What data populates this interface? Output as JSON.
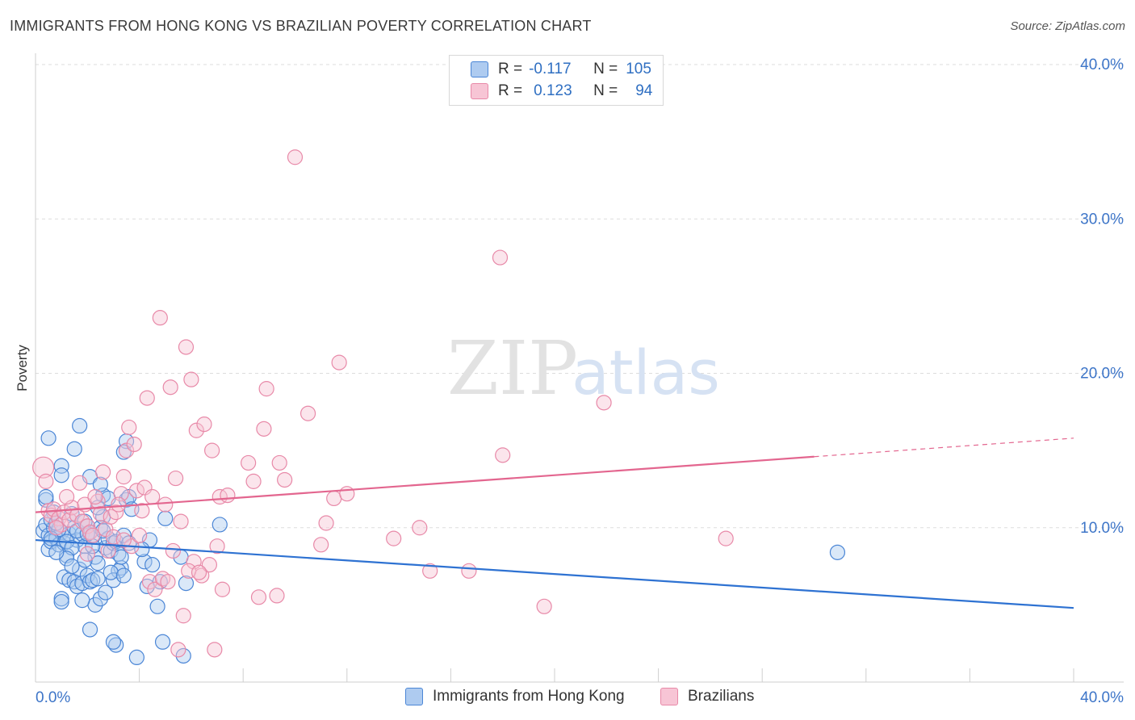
{
  "title": "IMMIGRANTS FROM HONG KONG VS BRAZILIAN POVERTY CORRELATION CHART",
  "source": "Source: ZipAtlas.com",
  "watermark": {
    "zip": "ZIP",
    "atlas": "atlas"
  },
  "colors": {
    "blue_fill": "#aecbf0",
    "blue_stroke": "#4b86d6",
    "blue_line": "#2e72d2",
    "pink_fill": "#f7c5d5",
    "pink_stroke": "#e889a8",
    "pink_line": "#e3668f",
    "tick_text": "#3d75c8",
    "grid": "#dddddd"
  },
  "legend": {
    "rows": [
      {
        "r_label": "R =",
        "r_value": "-0.117",
        "n_label": "N =",
        "n_value": "105"
      },
      {
        "r_label": "R =",
        "r_value": "0.123",
        "n_label": "N =",
        "n_value": "94"
      }
    ]
  },
  "chart_data": {
    "type": "scatter",
    "title": "IMMIGRANTS FROM HONG KONG VS BRAZILIAN POVERTY CORRELATION CHART",
    "xlabel": "",
    "ylabel": "Poverty",
    "xlim": [
      0,
      40
    ],
    "ylim": [
      0,
      40
    ],
    "x_tick_labels": [
      "0.0%",
      "40.0%"
    ],
    "y_ticks": [
      10,
      20,
      30,
      40
    ],
    "y_tick_labels": [
      "10.0%",
      "20.0%",
      "30.0%",
      "40.0%"
    ],
    "grid": "horizontal dashed",
    "legend_placement": "top-center",
    "series": [
      {
        "name": "Immigrants from Hong Kong",
        "r": -0.117,
        "n": 105,
        "trend": {
          "x": [
            0,
            40
          ],
          "y": [
            9.2,
            4.8
          ]
        },
        "points": [
          [
            0.3,
            9.8
          ],
          [
            0.4,
            10.2
          ],
          [
            0.5,
            9.5
          ],
          [
            0.5,
            8.6
          ],
          [
            0.6,
            9.1
          ],
          [
            0.7,
            10.0
          ],
          [
            0.8,
            9.3
          ],
          [
            0.9,
            8.9
          ],
          [
            1.0,
            9.7
          ],
          [
            1.1,
            9.0
          ],
          [
            1.2,
            8.2
          ],
          [
            1.3,
            9.6
          ],
          [
            0.4,
            11.8
          ],
          [
            0.6,
            10.5
          ],
          [
            0.5,
            15.8
          ],
          [
            1.5,
            15.1
          ],
          [
            1.7,
            16.6
          ],
          [
            1.0,
            14.0
          ],
          [
            1.0,
            13.4
          ],
          [
            1.4,
            10.9
          ],
          [
            1.5,
            10.0
          ],
          [
            1.6,
            9.2
          ],
          [
            1.8,
            9.6
          ],
          [
            1.9,
            8.8
          ],
          [
            2.0,
            10.1
          ],
          [
            2.1,
            9.7
          ],
          [
            2.2,
            9.4
          ],
          [
            2.3,
            8.1
          ],
          [
            2.4,
            7.7
          ],
          [
            2.5,
            10.0
          ],
          [
            2.6,
            12.1
          ],
          [
            2.7,
            8.7
          ],
          [
            2.8,
            9.3
          ],
          [
            2.9,
            8.5
          ],
          [
            3.0,
            9.0
          ],
          [
            3.1,
            9.1
          ],
          [
            3.3,
            7.4
          ],
          [
            3.4,
            9.5
          ],
          [
            3.5,
            11.8
          ],
          [
            3.6,
            12.0
          ],
          [
            3.7,
            11.2
          ],
          [
            3.5,
            15.6
          ],
          [
            3.4,
            14.9
          ],
          [
            2.1,
            13.3
          ],
          [
            2.5,
            12.8
          ],
          [
            2.6,
            10.7
          ],
          [
            2.8,
            11.9
          ],
          [
            3.2,
            7.2
          ],
          [
            1.1,
            6.8
          ],
          [
            1.3,
            6.6
          ],
          [
            1.5,
            6.5
          ],
          [
            1.6,
            6.2
          ],
          [
            1.7,
            7.3
          ],
          [
            1.8,
            6.4
          ],
          [
            1.9,
            7.9
          ],
          [
            2.0,
            6.9
          ],
          [
            2.1,
            6.5
          ],
          [
            2.2,
            6.6
          ],
          [
            2.3,
            5.0
          ],
          [
            2.5,
            5.4
          ],
          [
            2.7,
            5.8
          ],
          [
            3.0,
            6.6
          ],
          [
            1.0,
            5.4
          ],
          [
            1.0,
            5.2
          ],
          [
            1.8,
            5.3
          ],
          [
            2.1,
            3.4
          ],
          [
            3.1,
            2.4
          ],
          [
            3.9,
            1.6
          ],
          [
            4.9,
            2.6
          ],
          [
            5.7,
            1.7
          ],
          [
            3.0,
            2.6
          ],
          [
            4.2,
            7.8
          ],
          [
            4.5,
            7.6
          ],
          [
            4.4,
            9.2
          ],
          [
            5.6,
            8.1
          ],
          [
            5.8,
            6.4
          ],
          [
            4.8,
            6.5
          ],
          [
            4.7,
            4.9
          ],
          [
            5.0,
            10.6
          ],
          [
            7.1,
            10.2
          ],
          [
            3.2,
            8.3
          ],
          [
            3.6,
            9.0
          ],
          [
            30.9,
            8.4
          ],
          [
            0.4,
            12.0
          ],
          [
            0.7,
            11.0
          ],
          [
            0.9,
            9.9
          ],
          [
            1.2,
            9.1
          ],
          [
            1.4,
            8.7
          ],
          [
            0.8,
            10.3
          ],
          [
            2.4,
            11.3
          ],
          [
            2.6,
            9.8
          ],
          [
            3.3,
            8.1
          ],
          [
            1.6,
            9.8
          ],
          [
            1.9,
            10.4
          ],
          [
            2.2,
            8.8
          ],
          [
            2.4,
            6.7
          ],
          [
            2.9,
            7.1
          ],
          [
            3.4,
            6.9
          ],
          [
            4.1,
            8.6
          ],
          [
            4.3,
            6.2
          ],
          [
            1.2,
            8.0
          ],
          [
            1.4,
            7.5
          ],
          [
            0.6,
            9.3
          ],
          [
            0.8,
            8.4
          ],
          [
            2.0,
            9.6
          ]
        ]
      },
      {
        "name": "Brazilians",
        "r": 0.123,
        "n": 94,
        "trend": {
          "x": [
            0,
            40
          ],
          "y": [
            11.0,
            15.8
          ]
        },
        "points": [
          [
            0.3,
            13.9
          ],
          [
            0.4,
            13.0
          ],
          [
            0.5,
            11.1
          ],
          [
            0.6,
            10.8
          ],
          [
            0.7,
            11.2
          ],
          [
            0.9,
            10.6
          ],
          [
            1.0,
            10.2
          ],
          [
            1.1,
            11.0
          ],
          [
            1.3,
            10.5
          ],
          [
            1.4,
            11.3
          ],
          [
            1.6,
            10.8
          ],
          [
            1.8,
            10.4
          ],
          [
            1.9,
            11.5
          ],
          [
            2.0,
            10.1
          ],
          [
            2.1,
            9.7
          ],
          [
            2.2,
            9.5
          ],
          [
            2.4,
            11.7
          ],
          [
            2.5,
            10.9
          ],
          [
            2.6,
            13.6
          ],
          [
            2.7,
            9.9
          ],
          [
            2.9,
            10.7
          ],
          [
            3.0,
            9.4
          ],
          [
            3.1,
            11.0
          ],
          [
            3.3,
            12.2
          ],
          [
            3.4,
            13.3
          ],
          [
            3.5,
            15.0
          ],
          [
            3.6,
            16.5
          ],
          [
            3.8,
            15.4
          ],
          [
            3.9,
            12.4
          ],
          [
            4.1,
            11.1
          ],
          [
            4.2,
            12.6
          ],
          [
            4.3,
            18.4
          ],
          [
            4.5,
            12.0
          ],
          [
            4.8,
            23.6
          ],
          [
            5.0,
            11.5
          ],
          [
            5.2,
            19.1
          ],
          [
            5.4,
            13.2
          ],
          [
            5.6,
            10.4
          ],
          [
            5.8,
            21.7
          ],
          [
            6.0,
            19.6
          ],
          [
            6.2,
            16.3
          ],
          [
            6.5,
            16.7
          ],
          [
            6.8,
            15.0
          ],
          [
            7.1,
            12.0
          ],
          [
            7.4,
            12.1
          ],
          [
            8.2,
            14.2
          ],
          [
            8.4,
            13.0
          ],
          [
            8.9,
            19.0
          ],
          [
            8.8,
            16.4
          ],
          [
            9.4,
            14.2
          ],
          [
            9.6,
            13.1
          ],
          [
            10.5,
            17.4
          ],
          [
            11.0,
            8.9
          ],
          [
            11.2,
            10.3
          ],
          [
            11.5,
            11.9
          ],
          [
            11.7,
            20.7
          ],
          [
            12.0,
            12.2
          ],
          [
            13.8,
            9.3
          ],
          [
            14.8,
            10.0
          ],
          [
            15.2,
            7.2
          ],
          [
            16.7,
            7.2
          ],
          [
            17.9,
            27.5
          ],
          [
            18.0,
            14.7
          ],
          [
            19.6,
            4.9
          ],
          [
            21.9,
            18.1
          ],
          [
            26.6,
            9.3
          ],
          [
            10.0,
            34.0
          ],
          [
            1.2,
            12.0
          ],
          [
            1.7,
            12.9
          ],
          [
            2.3,
            12.0
          ],
          [
            2.8,
            8.5
          ],
          [
            3.2,
            11.5
          ],
          [
            3.7,
            8.8
          ],
          [
            4.0,
            9.5
          ],
          [
            4.4,
            6.5
          ],
          [
            4.6,
            6.0
          ],
          [
            4.9,
            6.7
          ],
          [
            5.1,
            6.5
          ],
          [
            5.3,
            8.5
          ],
          [
            5.5,
            2.1
          ],
          [
            5.7,
            4.3
          ],
          [
            6.1,
            7.8
          ],
          [
            6.4,
            6.9
          ],
          [
            6.7,
            7.6
          ],
          [
            6.9,
            2.1
          ],
          [
            7.2,
            6.0
          ],
          [
            7.0,
            8.8
          ],
          [
            8.6,
            5.5
          ],
          [
            9.3,
            5.6
          ],
          [
            5.9,
            7.2
          ],
          [
            6.3,
            7.1
          ],
          [
            2.0,
            8.3
          ],
          [
            3.4,
            9.2
          ],
          [
            0.8,
            10.0
          ]
        ]
      }
    ]
  }
}
